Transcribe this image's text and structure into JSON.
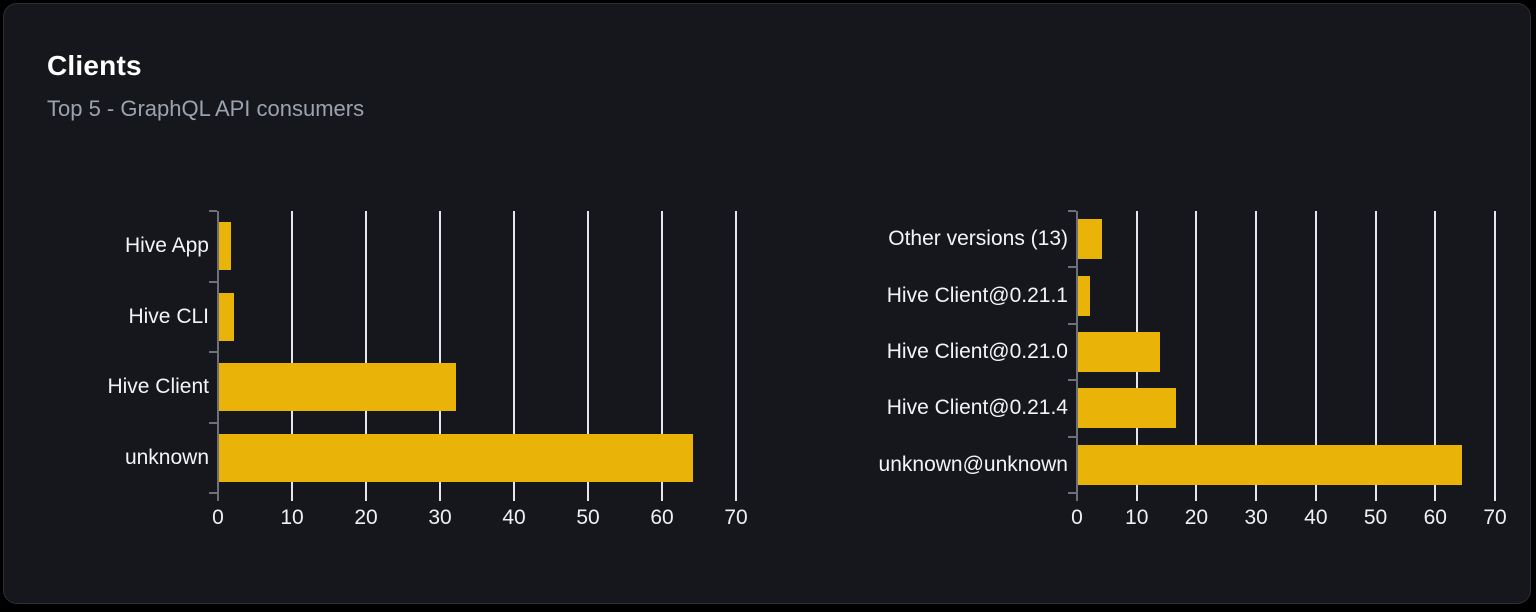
{
  "page": {
    "title": "Clients",
    "subtitle": "Top 5 - GraphQL API consumers"
  },
  "colors": {
    "bar": "#EAB308",
    "grid_line": "#E3E7F0",
    "axis_line": "#6E7079",
    "tick_label": "#EEF0F3",
    "category_label": "#F3F4F6",
    "title": "#FFFFFF",
    "subtitle": "#9CA3AF",
    "card_bg": "#16171C",
    "card_border": "#2C2E34",
    "page_bg": "#000000"
  },
  "chart_data": [
    {
      "type": "bar",
      "orientation": "horizontal",
      "categories": [
        "Hive App",
        "Hive CLI",
        "Hive Client",
        "unknown"
      ],
      "values": [
        1.6,
        2,
        32,
        64
      ],
      "xlim": [
        0,
        70
      ],
      "xticks": [
        0,
        10,
        20,
        30,
        40,
        50,
        60,
        70
      ],
      "grid": true,
      "legend_position": "none"
    },
    {
      "type": "bar",
      "orientation": "horizontal",
      "categories": [
        "Other versions (13)",
        "Hive Client@0.21.1",
        "Hive Client@0.21.0",
        "Hive Client@0.21.4",
        "unknown@unknown"
      ],
      "values": [
        4,
        2,
        13.8,
        16.4,
        64.3
      ],
      "xlim": [
        0,
        70
      ],
      "xticks": [
        0,
        10,
        20,
        30,
        40,
        50,
        60,
        70
      ],
      "grid": true,
      "legend_position": "none"
    }
  ]
}
